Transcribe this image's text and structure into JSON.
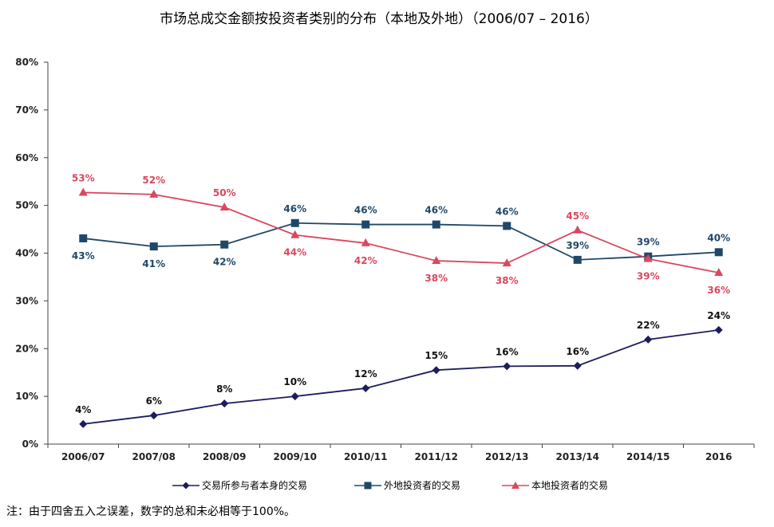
{
  "chart_data": {
    "type": "line",
    "title": "市场总成交金额按投资者类别的分布（本地及外地）（2006/07 – 2016）",
    "xlabel": "",
    "ylabel": "",
    "ylim": [
      0,
      80
    ],
    "yticks": [
      "0%",
      "10%",
      "20%",
      "30%",
      "40%",
      "50%",
      "60%",
      "70%",
      "80%"
    ],
    "categories": [
      "2006/07",
      "2007/08",
      "2008/09",
      "2009/10",
      "2010/11",
      "2011/12",
      "2012/13",
      "2013/14",
      "2014/15",
      "2016"
    ],
    "series": [
      {
        "name": "交易所参与者本身的交易",
        "color": "#1c1c5e",
        "marker": "diamond",
        "values": [
          4.2,
          6.0,
          8.5,
          10.0,
          11.7,
          15.5,
          16.3,
          16.4,
          21.9,
          23.9
        ],
        "labels": [
          "4%",
          "6%",
          "8%",
          "10%",
          "12%",
          "15%",
          "16%",
          "16%",
          "22%",
          "24%"
        ],
        "label_pos": [
          "above",
          "above",
          "above",
          "above",
          "above",
          "above",
          "above",
          "above",
          "above",
          "above"
        ]
      },
      {
        "name": "外地投资者的交易",
        "color": "#1f4868",
        "marker": "square",
        "values": [
          43.1,
          41.4,
          41.8,
          46.3,
          46.0,
          46.0,
          45.7,
          38.6,
          39.3,
          40.2
        ],
        "labels": [
          "43%",
          "41%",
          "42%",
          "46%",
          "46%",
          "46%",
          "46%",
          "39%",
          "39%",
          "40%"
        ],
        "label_pos": [
          "below",
          "below",
          "below",
          "above",
          "above",
          "above",
          "above",
          "above",
          "above",
          "above"
        ]
      },
      {
        "name": "本地投资者的交易",
        "color": "#d9485f",
        "marker": "triangle",
        "values": [
          52.7,
          52.3,
          49.6,
          43.8,
          42.1,
          38.4,
          37.9,
          44.8,
          38.8,
          35.9
        ],
        "labels": [
          "53%",
          "52%",
          "50%",
          "44%",
          "42%",
          "38%",
          "38%",
          "45%",
          "39%",
          "36%"
        ],
        "label_pos": [
          "above",
          "above",
          "above",
          "below",
          "below",
          "below",
          "below",
          "above",
          "below",
          "below"
        ]
      }
    ]
  },
  "note": "注：由于四舍五入之误差，数字的总和未必相等于100%。"
}
